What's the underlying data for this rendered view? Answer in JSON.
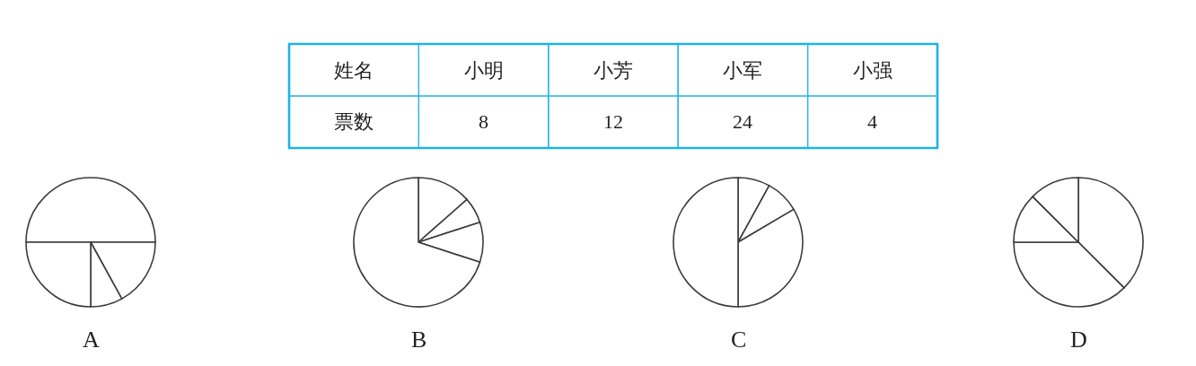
{
  "chart_data": [
    {
      "type": "other",
      "xlabel": "姓名",
      "ylabel": "票数",
      "categories": [
        "小明",
        "小芳",
        "小军",
        "小强"
      ],
      "values": [
        8,
        12,
        24,
        4
      ],
      "data_labels": true
    },
    {
      "type": "pie",
      "title": "A",
      "categories": [
        null,
        null,
        null,
        null
      ],
      "values": [
        50,
        17,
        8,
        25
      ],
      "colors": [
        "#ffffff",
        "#ffffff",
        "#ffffff",
        "#ffffff"
      ]
    },
    {
      "type": "pie",
      "title": "B",
      "categories": [
        null,
        null,
        null,
        null
      ],
      "values": [
        13.5,
        6.5,
        10,
        70
      ],
      "colors": [
        "#ffffff",
        "#ffffff",
        "#ffffff",
        "#ffffff"
      ]
    },
    {
      "type": "pie",
      "title": "C",
      "categories": [
        null,
        null,
        null,
        null
      ],
      "values": [
        8,
        8.5,
        33.5,
        50
      ],
      "colors": [
        "#ffffff",
        "#ffffff",
        "#ffffff",
        "#ffffff"
      ]
    },
    {
      "type": "pie",
      "title": "D",
      "categories": [
        null,
        null,
        null,
        null
      ],
      "values": [
        37.5,
        37.5,
        12.5,
        12.5
      ],
      "colors": [
        "#ffffff",
        "#ffffff",
        "#ffffff",
        "#ffffff"
      ]
    }
  ]
}
